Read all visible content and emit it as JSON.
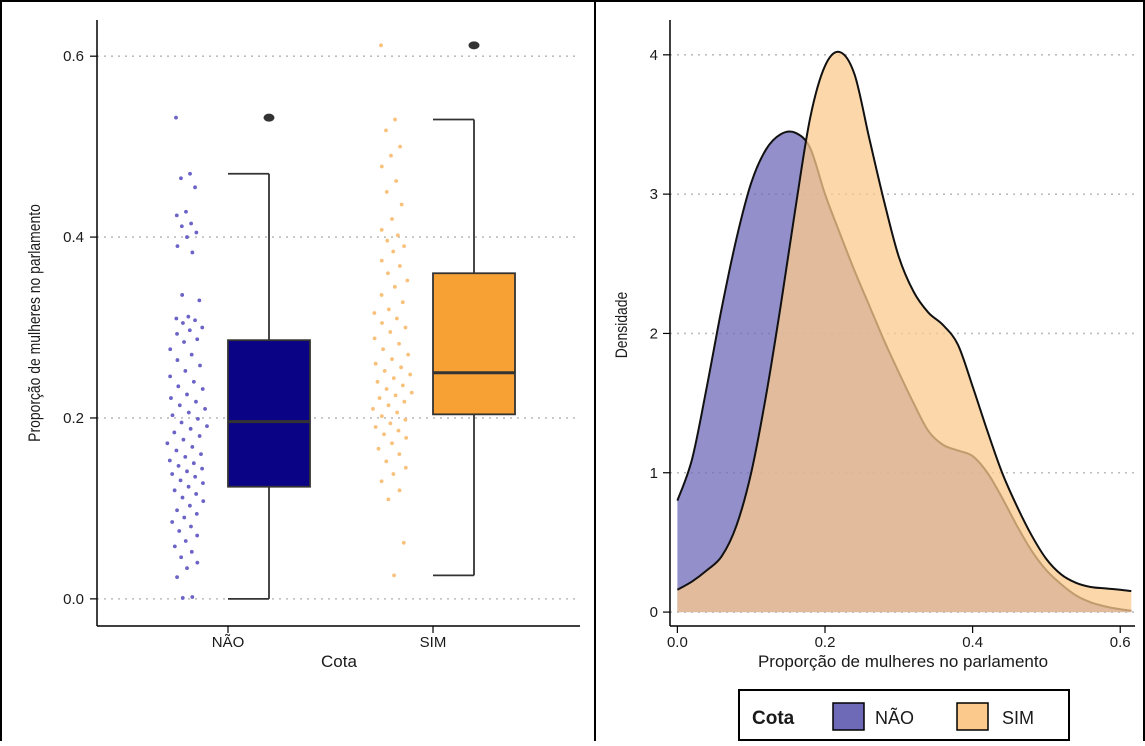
{
  "chart_data": [
    {
      "type": "box",
      "xlabel": "Cota",
      "ylabel": "Proporção de mulheres no parlamento",
      "categories": [
        "NÃO",
        "SIM"
      ],
      "ylim": [
        -0.03,
        0.64
      ],
      "yticks": [
        0.0,
        0.2,
        0.4,
        0.6
      ],
      "ytick_labels": [
        "0.0",
        "0.2",
        "0.4",
        "0.6"
      ],
      "grid": "horizontal-dotted",
      "series": [
        {
          "category": "NÃO",
          "color": "#0b0385",
          "point_color": "#6b63c6",
          "box": {
            "whisker_low": 0.0,
            "q1": 0.124,
            "median": 0.196,
            "q3": 0.286,
            "whisker_high": 0.47
          },
          "outliers": [
            0.532
          ],
          "points": [
            0.532,
            0.47,
            0.465,
            0.455,
            0.428,
            0.424,
            0.415,
            0.412,
            0.405,
            0.4,
            0.39,
            0.383,
            0.336,
            0.33,
            0.312,
            0.31,
            0.308,
            0.305,
            0.3,
            0.297,
            0.293,
            0.287,
            0.284,
            0.276,
            0.27,
            0.264,
            0.258,
            0.252,
            0.246,
            0.24,
            0.235,
            0.232,
            0.226,
            0.222,
            0.218,
            0.214,
            0.21,
            0.206,
            0.203,
            0.199,
            0.195,
            0.191,
            0.188,
            0.184,
            0.18,
            0.176,
            0.172,
            0.168,
            0.164,
            0.16,
            0.157,
            0.153,
            0.15,
            0.147,
            0.144,
            0.141,
            0.138,
            0.135,
            0.131,
            0.128,
            0.124,
            0.12,
            0.116,
            0.112,
            0.108,
            0.103,
            0.098,
            0.094,
            0.09,
            0.085,
            0.08,
            0.075,
            0.07,
            0.064,
            0.058,
            0.052,
            0.046,
            0.04,
            0.034,
            0.024,
            0.002,
            0.001
          ]
        },
        {
          "category": "SIM",
          "color": "#f7a134",
          "point_color": "#f9c07a",
          "box": {
            "whisker_low": 0.026,
            "q1": 0.204,
            "median": 0.25,
            "q3": 0.36,
            "whisker_high": 0.53
          },
          "outliers": [
            0.612
          ],
          "points": [
            0.612,
            0.53,
            0.518,
            0.5,
            0.49,
            0.478,
            0.462,
            0.45,
            0.436,
            0.42,
            0.408,
            0.402,
            0.396,
            0.39,
            0.384,
            0.374,
            0.368,
            0.36,
            0.352,
            0.345,
            0.336,
            0.328,
            0.32,
            0.316,
            0.31,
            0.305,
            0.3,
            0.295,
            0.288,
            0.282,
            0.276,
            0.27,
            0.265,
            0.26,
            0.256,
            0.252,
            0.248,
            0.244,
            0.24,
            0.236,
            0.232,
            0.228,
            0.225,
            0.222,
            0.218,
            0.214,
            0.21,
            0.206,
            0.202,
            0.198,
            0.194,
            0.19,
            0.186,
            0.182,
            0.178,
            0.172,
            0.166,
            0.16,
            0.152,
            0.145,
            0.138,
            0.13,
            0.12,
            0.11,
            0.062,
            0.026
          ]
        }
      ]
    },
    {
      "type": "area",
      "xlabel": "Proporção de mulheres no parlamento",
      "ylabel": "Densidade",
      "xlim": [
        -0.01,
        0.62
      ],
      "ylim": [
        -0.1,
        4.25
      ],
      "xticks": [
        0.0,
        0.2,
        0.4,
        0.6
      ],
      "xtick_labels": [
        "0.0",
        "0.2",
        "0.4",
        "0.6"
      ],
      "yticks": [
        0,
        1,
        2,
        3,
        4
      ],
      "ytick_labels": [
        "0",
        "1",
        "2",
        "3",
        "4"
      ],
      "grid": "horizontal-dotted",
      "legend": {
        "title": "Cota",
        "position": "bottom",
        "entries": [
          "NÃO",
          "SIM"
        ]
      },
      "series": [
        {
          "name": "NÃO",
          "color": "#6f6ab8",
          "x": [
            0.0,
            0.02,
            0.04,
            0.06,
            0.08,
            0.1,
            0.12,
            0.14,
            0.16,
            0.18,
            0.2,
            0.22,
            0.24,
            0.26,
            0.28,
            0.3,
            0.32,
            0.34,
            0.36,
            0.38,
            0.4,
            0.42,
            0.44,
            0.46,
            0.48,
            0.5,
            0.52,
            0.54,
            0.56,
            0.58,
            0.6,
            0.615
          ],
          "y": [
            0.8,
            1.1,
            1.62,
            2.18,
            2.68,
            3.08,
            3.32,
            3.43,
            3.44,
            3.33,
            3.0,
            2.72,
            2.45,
            2.2,
            1.95,
            1.72,
            1.5,
            1.3,
            1.2,
            1.16,
            1.12,
            1.0,
            0.82,
            0.62,
            0.44,
            0.3,
            0.2,
            0.12,
            0.07,
            0.04,
            0.02,
            0.01
          ]
        },
        {
          "name": "SIM",
          "color": "#fbc98c",
          "x": [
            0.0,
            0.02,
            0.04,
            0.06,
            0.08,
            0.1,
            0.12,
            0.14,
            0.16,
            0.18,
            0.2,
            0.22,
            0.24,
            0.26,
            0.28,
            0.3,
            0.32,
            0.34,
            0.36,
            0.38,
            0.4,
            0.42,
            0.44,
            0.46,
            0.48,
            0.5,
            0.52,
            0.54,
            0.56,
            0.58,
            0.6,
            0.615
          ],
          "y": [
            0.16,
            0.22,
            0.3,
            0.4,
            0.62,
            1.0,
            1.55,
            2.2,
            2.9,
            3.55,
            3.92,
            4.02,
            3.86,
            3.4,
            2.95,
            2.55,
            2.3,
            2.15,
            2.06,
            1.92,
            1.62,
            1.3,
            1.0,
            0.76,
            0.55,
            0.38,
            0.27,
            0.21,
            0.18,
            0.17,
            0.16,
            0.15
          ]
        }
      ]
    }
  ]
}
